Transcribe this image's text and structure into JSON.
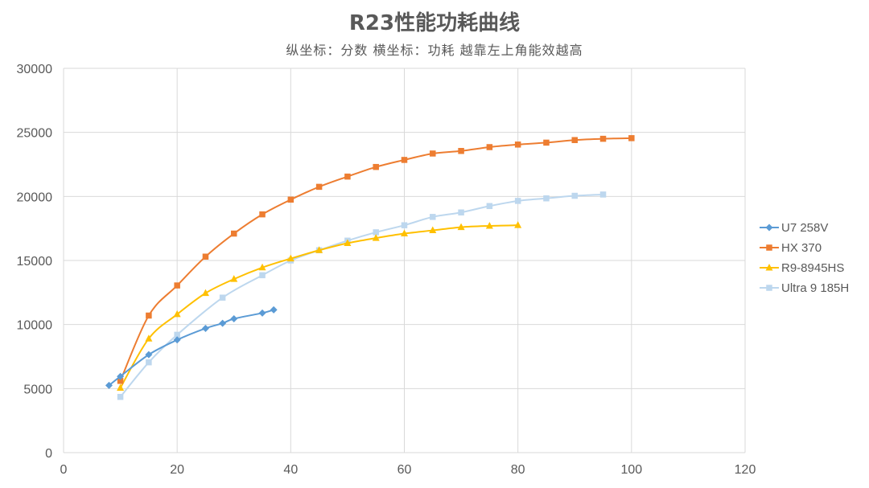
{
  "chart_data": {
    "type": "line",
    "title": "R23性能功耗曲线",
    "subtitle": "纵坐标：分数 横坐标：功耗 越靠左上角能效越高",
    "xlim": [
      0,
      120
    ],
    "ylim": [
      0,
      30000
    ],
    "x_ticks": [
      0,
      20,
      40,
      60,
      80,
      100,
      120
    ],
    "y_ticks": [
      0,
      5000,
      10000,
      15000,
      20000,
      25000,
      30000
    ],
    "grid": true,
    "legend_position": "right",
    "series": [
      {
        "name": "U7 258V",
        "color": "#5B9BD5",
        "marker": "diamond",
        "points": [
          [
            8,
            5250
          ],
          [
            10,
            5950
          ],
          [
            15,
            7650
          ],
          [
            20,
            8800
          ],
          [
            25,
            9700
          ],
          [
            28,
            10100
          ],
          [
            30,
            10450
          ],
          [
            35,
            10900
          ],
          [
            37,
            11150
          ]
        ]
      },
      {
        "name": "HX 370",
        "color": "#ED7D31",
        "marker": "square",
        "points": [
          [
            10,
            5600
          ],
          [
            15,
            10700
          ],
          [
            20,
            13050
          ],
          [
            25,
            15300
          ],
          [
            30,
            17100
          ],
          [
            35,
            18600
          ],
          [
            40,
            19750
          ],
          [
            45,
            20750
          ],
          [
            50,
            21550
          ],
          [
            55,
            22300
          ],
          [
            60,
            22850
          ],
          [
            65,
            23350
          ],
          [
            70,
            23550
          ],
          [
            75,
            23850
          ],
          [
            80,
            24050
          ],
          [
            85,
            24200
          ],
          [
            90,
            24400
          ],
          [
            95,
            24500
          ],
          [
            100,
            24550
          ]
        ]
      },
      {
        "name": "R9-8945HS",
        "color": "#FFC000",
        "marker": "triangle",
        "points": [
          [
            10,
            5050
          ],
          [
            15,
            8900
          ],
          [
            20,
            10800
          ],
          [
            25,
            12450
          ],
          [
            30,
            13550
          ],
          [
            35,
            14450
          ],
          [
            40,
            15150
          ],
          [
            45,
            15800
          ],
          [
            50,
            16350
          ],
          [
            55,
            16750
          ],
          [
            60,
            17100
          ],
          [
            65,
            17350
          ],
          [
            70,
            17600
          ],
          [
            75,
            17700
          ],
          [
            80,
            17750
          ]
        ]
      },
      {
        "name": "Ultra 9 185H",
        "color": "#BDD7EE",
        "marker": "square",
        "points": [
          [
            10,
            4350
          ],
          [
            15,
            7050
          ],
          [
            20,
            9200
          ],
          [
            28,
            12100
          ],
          [
            35,
            13850
          ],
          [
            40,
            15000
          ],
          [
            45,
            15800
          ],
          [
            50,
            16550
          ],
          [
            55,
            17200
          ],
          [
            60,
            17750
          ],
          [
            65,
            18400
          ],
          [
            70,
            18750
          ],
          [
            75,
            19250
          ],
          [
            80,
            19650
          ],
          [
            85,
            19850
          ],
          [
            90,
            20050
          ],
          [
            95,
            20150
          ]
        ]
      }
    ]
  }
}
